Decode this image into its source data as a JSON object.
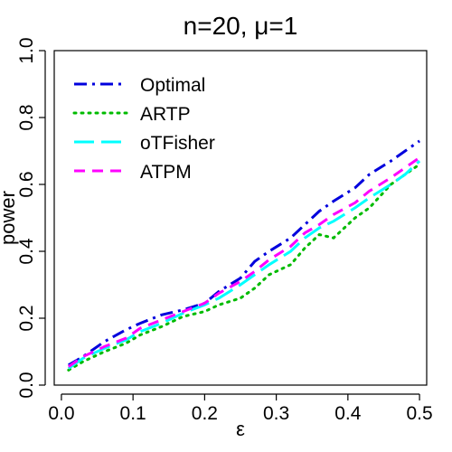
{
  "chart_data": {
    "type": "line",
    "title": "n=20, μ=1",
    "xlabel": "ε",
    "ylabel": "power",
    "xlim": [
      -0.01,
      0.51
    ],
    "ylim": [
      0.0,
      1.0
    ],
    "x_ticks": [
      "0.0",
      "0.1",
      "0.2",
      "0.3",
      "0.4",
      "0.5"
    ],
    "y_ticks": [
      "0.0",
      "0.2",
      "0.4",
      "0.6",
      "0.8",
      "1.0"
    ],
    "legend_position": "top-left",
    "grid": false,
    "x": [
      0.01,
      0.03,
      0.06,
      0.09,
      0.11,
      0.14,
      0.17,
      0.2,
      0.22,
      0.25,
      0.27,
      0.29,
      0.32,
      0.34,
      0.36,
      0.38,
      0.41,
      0.43,
      0.46,
      0.48,
      0.5
    ],
    "series": [
      {
        "name": "Optimal",
        "color": "#0000dd",
        "dash": "dashdot",
        "values": [
          0.06,
          0.085,
          0.13,
          0.165,
          0.185,
          0.21,
          0.225,
          0.245,
          0.28,
          0.32,
          0.37,
          0.4,
          0.44,
          0.48,
          0.52,
          0.55,
          0.59,
          0.63,
          0.67,
          0.7,
          0.73
        ]
      },
      {
        "name": "ARTP",
        "color": "#00bb00",
        "dash": "dotted",
        "values": [
          0.045,
          0.07,
          0.1,
          0.125,
          0.15,
          0.175,
          0.205,
          0.22,
          0.24,
          0.26,
          0.29,
          0.33,
          0.36,
          0.41,
          0.45,
          0.44,
          0.5,
          0.53,
          0.6,
          0.63,
          0.66
        ]
      },
      {
        "name": "oTFisher",
        "color": "#00ffff",
        "dash": "longdash",
        "values": [
          0.05,
          0.08,
          0.11,
          0.135,
          0.16,
          0.185,
          0.215,
          0.24,
          0.26,
          0.3,
          0.33,
          0.36,
          0.4,
          0.44,
          0.47,
          0.49,
          0.53,
          0.56,
          0.6,
          0.63,
          0.67
        ]
      },
      {
        "name": "ATPM",
        "color": "#ff00ff",
        "dash": "dashed",
        "values": [
          0.055,
          0.085,
          0.115,
          0.14,
          0.17,
          0.195,
          0.22,
          0.245,
          0.275,
          0.31,
          0.34,
          0.375,
          0.415,
          0.455,
          0.48,
          0.51,
          0.545,
          0.58,
          0.62,
          0.65,
          0.68
        ]
      }
    ]
  }
}
